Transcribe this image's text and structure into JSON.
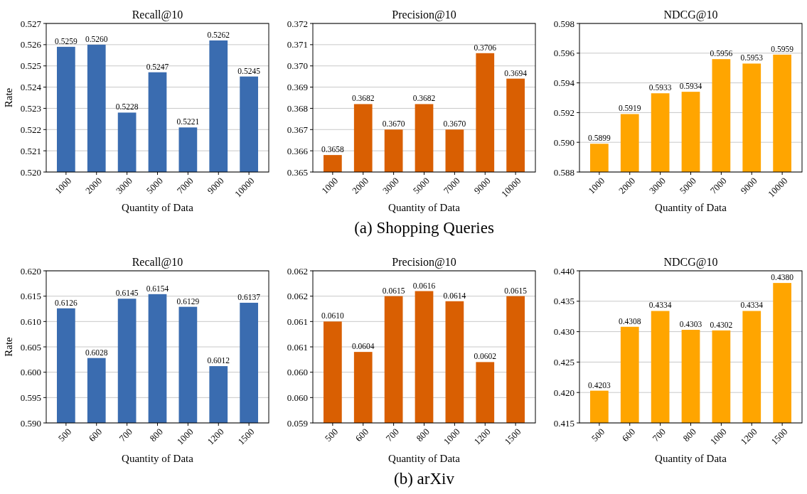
{
  "chart_data": [
    {
      "type": "bar",
      "title": "Recall@10",
      "xlabel": "Quantity of Data",
      "ylabel": "Rate",
      "categories": [
        "1000",
        "2000",
        "3000",
        "5000",
        "7000",
        "9000",
        "10000"
      ],
      "values": [
        0.5259,
        0.526,
        0.5228,
        0.5247,
        0.5221,
        0.5262,
        0.5245
      ],
      "value_labels": [
        "0.5259",
        "0.5260",
        "0.5228",
        "0.5247",
        "0.5221",
        "0.5262",
        "0.5245"
      ],
      "color": "#3a6cb0",
      "ylim": [
        0.52,
        0.527
      ],
      "yticks": [
        {
          "value": 0.52,
          "label": "0.520"
        },
        {
          "value": 0.521,
          "label": "0.521"
        },
        {
          "value": 0.522,
          "label": "0.522"
        },
        {
          "value": 0.523,
          "label": "0.523"
        },
        {
          "value": 0.524,
          "label": "0.524"
        },
        {
          "value": 0.525,
          "label": "0.525"
        },
        {
          "value": 0.526,
          "label": "0.526"
        },
        {
          "value": 0.527,
          "label": "0.527"
        }
      ],
      "grid": "y"
    },
    {
      "type": "bar",
      "title": "Precision@10",
      "xlabel": "Quantity of Data",
      "categories": [
        "1000",
        "2000",
        "3000",
        "5000",
        "7000",
        "9000",
        "10000"
      ],
      "values": [
        0.3658,
        0.3682,
        0.367,
        0.3682,
        0.367,
        0.3706,
        0.3694
      ],
      "value_labels": [
        "0.3658",
        "0.3682",
        "0.3670",
        "0.3682",
        "0.3670",
        "0.3706",
        "0.3694"
      ],
      "color": "#d95f02",
      "ylim": [
        0.365,
        0.372
      ],
      "yticks": [
        {
          "value": 0.365,
          "label": "0.365"
        },
        {
          "value": 0.366,
          "label": "0.366"
        },
        {
          "value": 0.367,
          "label": "0.367"
        },
        {
          "value": 0.368,
          "label": "0.368"
        },
        {
          "value": 0.369,
          "label": "0.369"
        },
        {
          "value": 0.37,
          "label": "0.370"
        },
        {
          "value": 0.371,
          "label": "0.371"
        },
        {
          "value": 0.372,
          "label": "0.372"
        }
      ],
      "grid": "y",
      "annotations": [
        "(a) Shopping Queries"
      ]
    },
    {
      "type": "bar",
      "title": "NDCG@10",
      "xlabel": "Quantity of Data",
      "categories": [
        "1000",
        "2000",
        "3000",
        "5000",
        "7000",
        "9000",
        "10000"
      ],
      "values": [
        0.5899,
        0.5919,
        0.5933,
        0.5934,
        0.5956,
        0.5953,
        0.5959
      ],
      "color": "#ffa500",
      "ylim": [
        0.588,
        0.598
      ],
      "yticks": [
        {
          "value": 0.588,
          "label": "0.588"
        },
        {
          "value": 0.59,
          "label": "0.590"
        },
        {
          "value": 0.592,
          "label": "0.592"
        },
        {
          "value": 0.594,
          "label": "0.594"
        },
        {
          "value": 0.596,
          "label": "0.596"
        },
        {
          "value": 0.598,
          "label": "0.598"
        }
      ],
      "grid": "y",
      "data_labels": true
    },
    {
      "type": "bar",
      "title": "Recall@10",
      "xlabel": "Quantity of Data",
      "ylabel": "Rate",
      "categories": [
        "500",
        "600",
        "700",
        "800",
        "1000",
        "1200",
        "1500"
      ],
      "values": [
        0.6126,
        0.6028,
        0.6145,
        0.6154,
        0.6129,
        0.6012,
        0.6137
      ],
      "color": "#3a6cb0",
      "ylim": [
        0.59,
        0.62
      ],
      "yticks": [
        {
          "value": 0.59,
          "label": "0.590"
        },
        {
          "value": 0.595,
          "label": "0.595"
        },
        {
          "value": 0.6,
          "label": "0.600"
        },
        {
          "value": 0.605,
          "label": "0.605"
        },
        {
          "value": 0.61,
          "label": "0.610"
        },
        {
          "value": 0.615,
          "label": "0.615"
        },
        {
          "value": 0.62,
          "label": "0.620"
        }
      ],
      "grid": "y",
      "data_labels": true
    },
    {
      "type": "bar",
      "title": "Precision@10",
      "xlabel": "Quantity of Data",
      "categories": [
        "500",
        "600",
        "700",
        "800",
        "1000",
        "1200",
        "1500"
      ],
      "values": [
        0.061,
        0.0604,
        0.0615,
        0.0616,
        0.0614,
        0.0602,
        0.0615
      ],
      "value_labels": [
        "0.0610",
        "0.0604",
        "0.0615",
        "0.0616",
        "0.0614",
        "0.0602",
        "0.0615"
      ],
      "color": "#d95f02",
      "ylim": [
        0.059,
        0.062
      ],
      "yticks": [
        {
          "value": 0.059,
          "label": "0.059"
        },
        {
          "value": 0.0595,
          "label": "0.060"
        },
        {
          "value": 0.06,
          "label": "0.060"
        },
        {
          "value": 0.0605,
          "label": "0.061"
        },
        {
          "value": 0.061,
          "label": "0.061"
        },
        {
          "value": 0.0615,
          "label": "0.062"
        },
        {
          "value": 0.062,
          "label": "0.062"
        }
      ],
      "grid": "y",
      "annotations": [
        "(b) arXiv"
      ]
    },
    {
      "type": "bar",
      "title": "NDCG@10",
      "xlabel": "Quantity of Data",
      "categories": [
        "500",
        "600",
        "700",
        "800",
        "1000",
        "1200",
        "1500"
      ],
      "values": [
        0.4203,
        0.4308,
        0.4334,
        0.4303,
        0.4302,
        0.4334,
        0.438
      ],
      "value_labels": [
        "0.4203",
        "0.4308",
        "0.4334",
        "0.4303",
        "0.4302",
        "0.4334",
        "0.4380"
      ],
      "color": "#ffa500",
      "ylim": [
        0.415,
        0.44
      ],
      "yticks": [
        {
          "value": 0.415,
          "label": "0.415"
        },
        {
          "value": 0.42,
          "label": "0.420"
        },
        {
          "value": 0.425,
          "label": "0.425"
        },
        {
          "value": 0.43,
          "label": "0.430"
        },
        {
          "value": 0.435,
          "label": "0.435"
        },
        {
          "value": 0.44,
          "label": "0.440"
        }
      ],
      "grid": "y"
    }
  ]
}
